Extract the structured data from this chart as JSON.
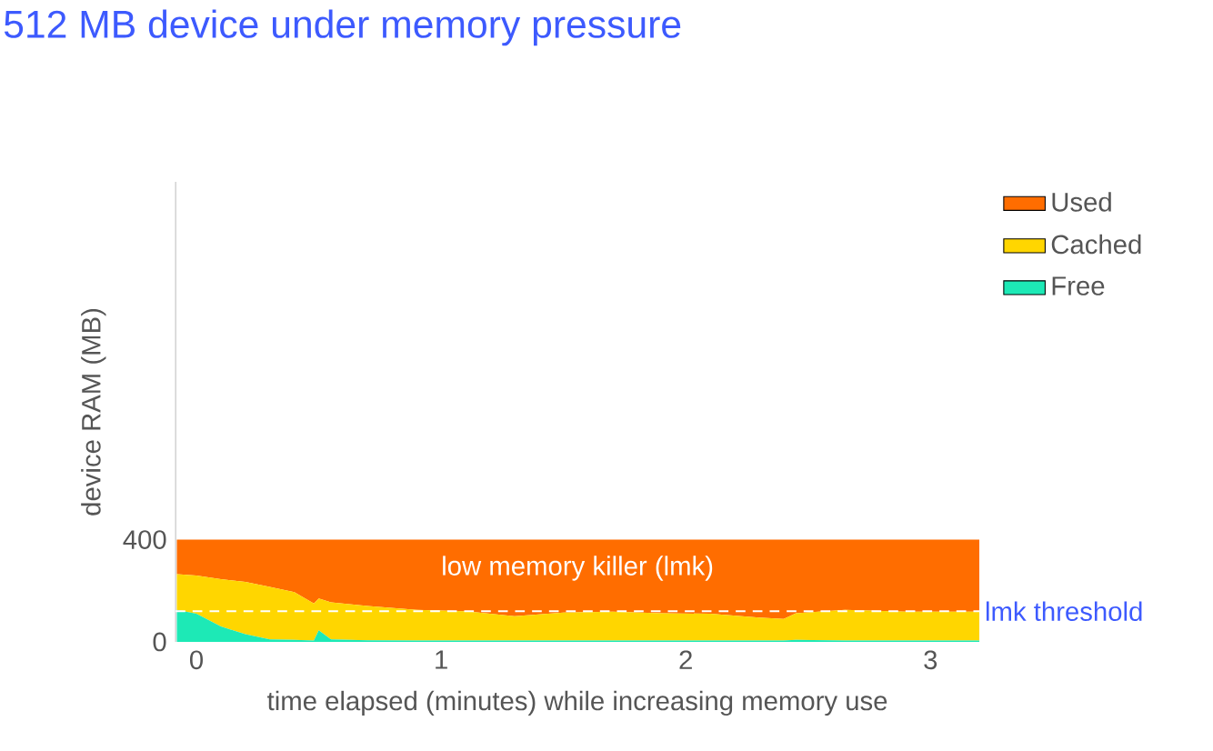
{
  "chart_data": {
    "type": "area",
    "stacked": true,
    "title": "512 MB device under memory pressure",
    "xlabel": "time elapsed (minutes) while increasing memory use",
    "ylabel": "device RAM (MB)",
    "x": [
      -0.08,
      0,
      0.1,
      0.2,
      0.3,
      0.4,
      0.48,
      0.5,
      0.55,
      0.7,
      0.9,
      1.1,
      1.3,
      1.5,
      1.7,
      1.9,
      2.1,
      2.3,
      2.4,
      2.45,
      2.65,
      2.9,
      3.2
    ],
    "series": [
      {
        "name": "Free",
        "color": "#1de9b6",
        "values": [
          125,
          110,
          60,
          30,
          10,
          8,
          5,
          45,
          10,
          6,
          5,
          5,
          5,
          5,
          5,
          5,
          5,
          5,
          5,
          8,
          5,
          5,
          5
        ]
      },
      {
        "name": "Cached",
        "color": "#ffd600",
        "values": [
          140,
          150,
          185,
          205,
          205,
          187,
          145,
          125,
          145,
          134,
          120,
          115,
          95,
          110,
          113,
          107,
          105,
          90,
          85,
          104,
          120,
          113,
          113
        ]
      },
      {
        "name": "Used",
        "color": "#ff6d00",
        "values": [
          135,
          140,
          155,
          165,
          185,
          205,
          250,
          230,
          245,
          260,
          275,
          280,
          300,
          285,
          282,
          288,
          290,
          305,
          310,
          288,
          275,
          282,
          282
        ]
      }
    ],
    "xlim": [
      -0.085,
      3.2
    ],
    "ylim": [
      0,
      1800
    ],
    "xticks": [
      0,
      1,
      2,
      3
    ],
    "yticks": [
      0,
      400
    ],
    "ref_lines": [
      {
        "axis": "y",
        "value": 120,
        "label": "lmk threshold",
        "color": "#ffffff",
        "line_style": "dashed"
      }
    ],
    "annotations": [
      "low memory killer (lmk)"
    ],
    "legend": "top right"
  }
}
